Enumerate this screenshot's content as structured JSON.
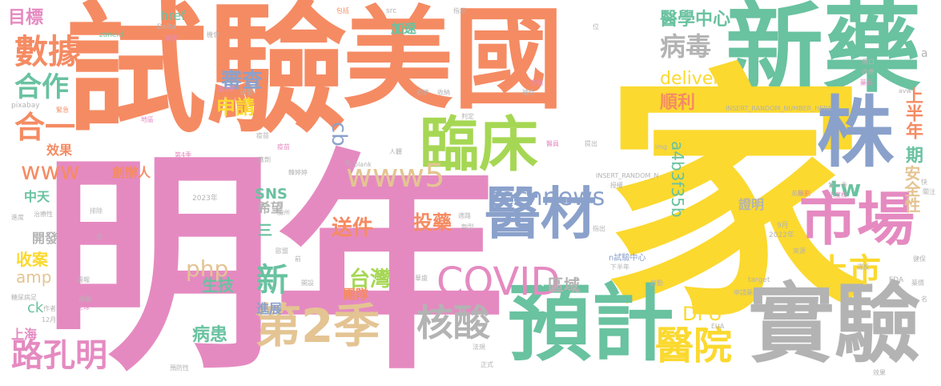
{
  "palette": {
    "orange": "#f58b63",
    "green": "#69c2a0",
    "pink": "#e58ac1",
    "yellow": "#fbd92f",
    "gray": "#b3b3b3",
    "tan": "#e4c493",
    "blue": "#8aa1cb",
    "lime": "#a6d754"
  },
  "words": {
    "shiyan": "試驗",
    "meiguo": "美國",
    "xinyao": "新藥",
    "jia": "家",
    "mingnian": "明年",
    "linchuang": "臨床",
    "zhu": "株",
    "yicai": "醫材",
    "shichang": "市場",
    "yuji": "預計",
    "shiyan2": "實驗",
    "yiyuan": "醫院",
    "di2ji": "第2季",
    "hesuan": "核酸",
    "covid": "COVID",
    "luqiongming": "路孔明",
    "shuju": "數據",
    "hezuo": "合作",
    "heyi": "合一",
    "www": "www",
    "www5": "www5",
    "technews": "technews",
    "shangshi": "上市",
    "xin": "新",
    "bingdu": "病毒",
    "delivery": "delivery",
    "yixuezhongxin": "醫學中心",
    "shenqing": "申請",
    "shencha": "審查",
    "shunli": "順利",
    "shangbannian": "上半年",
    "qi": "期",
    "anquanxing": "安全性",
    "hash": "a4b3f35b",
    "cb": "cb",
    "tw": "tw",
    "php": "php",
    "taiwan": "台灣",
    "songjian": "送件",
    "touyao": "投藥",
    "dfu": "DFU",
    "quyu": "區域",
    "tuandui": "團隊",
    "jinzhan": "進展",
    "bingzhe": "病患",
    "shengji": "生技",
    "sns": "SNS",
    "xiwang": "希望",
    "chuangbanren": "創辦人",
    "xiaoguo": "效果",
    "mubiao": "目標",
    "href": "href",
    "jiasu": "加速",
    "zhongtian": "中天",
    "kaifa": "開發",
    "shouan": "收案",
    "amp": "amp",
    "shanghai": "上海",
    "ck": "ck",
    "san": "三",
    "zhengming": "證明",
    "insert1": "INSERT_RANDOM_NUMBER_HERE",
    "insert2": "INSERT_RANDOM_N",
    "zoneid": "zoneid",
    "pixabay": "pixabay",
    "delta": "Delta",
    "src": "src",
    "blank": "_blank",
    "img": "img",
    "target": "target",
    "fda": "FDA",
    "eua": "EUA",
    "avw": "avw",
    "y2023": "2023年",
    "y2022": "2022年",
    "m9": "9月",
    "m12": "12月",
    "n_shiyanzhongxin": "n試驗中心",
    "a": "a",
    "s1": "包括",
    "s2": "指示",
    "s3": "位",
    "s4": "機會",
    "s5": "瑞步",
    "s6": "先行",
    "s7": "第3季",
    "s8": "研發",
    "s9": "初步",
    "s10": "收納",
    "s11": "緊急",
    "s12": "地區",
    "s13": "第4季",
    "s14": "部份",
    "s15": "規劃",
    "s16": "疫苗",
    "s17": "首圖",
    "s18": "補件",
    "s19": "判定",
    "s20": "人體",
    "s21": "醫員",
    "s22": "提出",
    "s23": "授權",
    "s24": "第一季",
    "s25": "英國",
    "s26": "印度株",
    "s27": "關注",
    "s28": "快",
    "s29": "來源",
    "s30": "指出",
    "s31": "下半年",
    "s32": "健保",
    "s33": "薬價",
    "s34": "名",
    "s35": "申請藥證",
    "s36": "啟動",
    "s37": "華盛",
    "s38": "開設",
    "s39": "前",
    "s40": "歐盟",
    "s41": "加州",
    "s42": "排除",
    "s43": "全",
    "s44": "治療性",
    "s45": "進度",
    "s46": "糖尿病足",
    "s47": "作者",
    "s48": "巴西",
    "s49": "進藏",
    "s50": "全球",
    "s51": "週報",
    "s52": "預防性",
    "s53": "正式",
    "s54": "法規",
    "s55": "適路",
    "s56": "劑型",
    "s57": "違反",
    "s58": "傳口",
    "s59": "改善",
    "s60": "藥局",
    "s61": "疫苗",
    "s62": "韓婷婷",
    "s63": "應劑",
    "s64": "台",
    "s65": "效果"
  }
}
